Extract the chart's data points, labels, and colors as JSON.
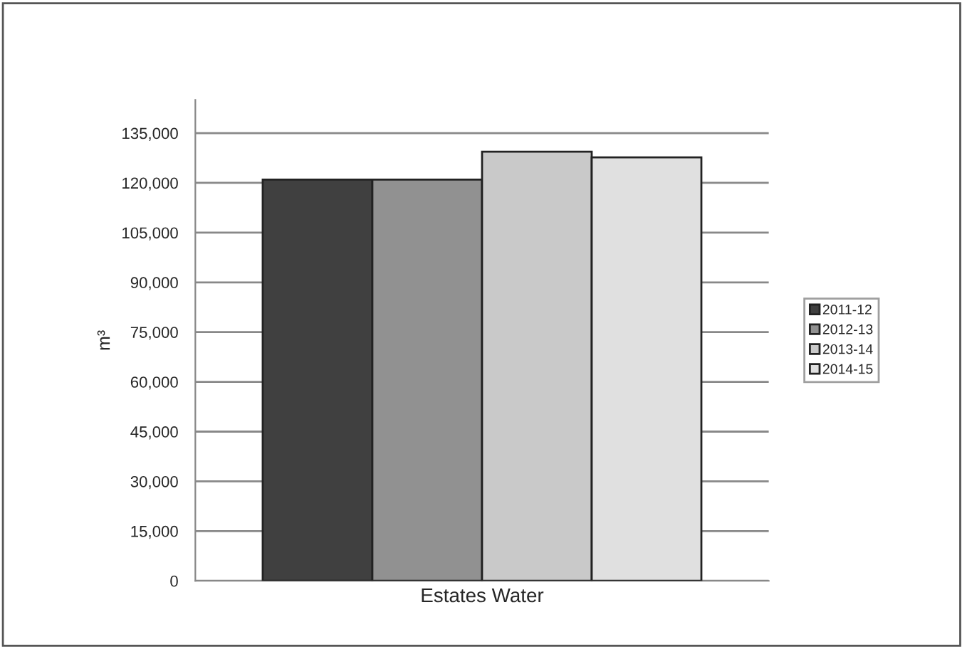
{
  "chart_data": {
    "type": "bar",
    "categories": [
      "Estates Water"
    ],
    "ylabel": "m³",
    "series": [
      {
        "name": "2011-12",
        "color": "#404040",
        "values": [
          121000
        ]
      },
      {
        "name": "2012-13",
        "color": "#919191",
        "values": [
          121000
        ]
      },
      {
        "name": "2013-14",
        "color": "#c9c9c9",
        "values": [
          129400
        ]
      },
      {
        "name": "2014-15",
        "color": "#e0e0e0",
        "values": [
          127700
        ]
      }
    ],
    "ylim": [
      0,
      145000
    ],
    "yticks": [
      {
        "value": 0,
        "label": "0"
      },
      {
        "value": 15000,
        "label": "15,000"
      },
      {
        "value": 30000,
        "label": "30,000"
      },
      {
        "value": 45000,
        "label": "45,000"
      },
      {
        "value": 60000,
        "label": "60,000"
      },
      {
        "value": 75000,
        "label": "75,000"
      },
      {
        "value": 90000,
        "label": "90,000"
      },
      {
        "value": 105000,
        "label": "105,000"
      },
      {
        "value": 120000,
        "label": "120,000"
      },
      {
        "value": 135000,
        "label": "135,000"
      }
    ],
    "grid": "y",
    "legend": "right"
  }
}
